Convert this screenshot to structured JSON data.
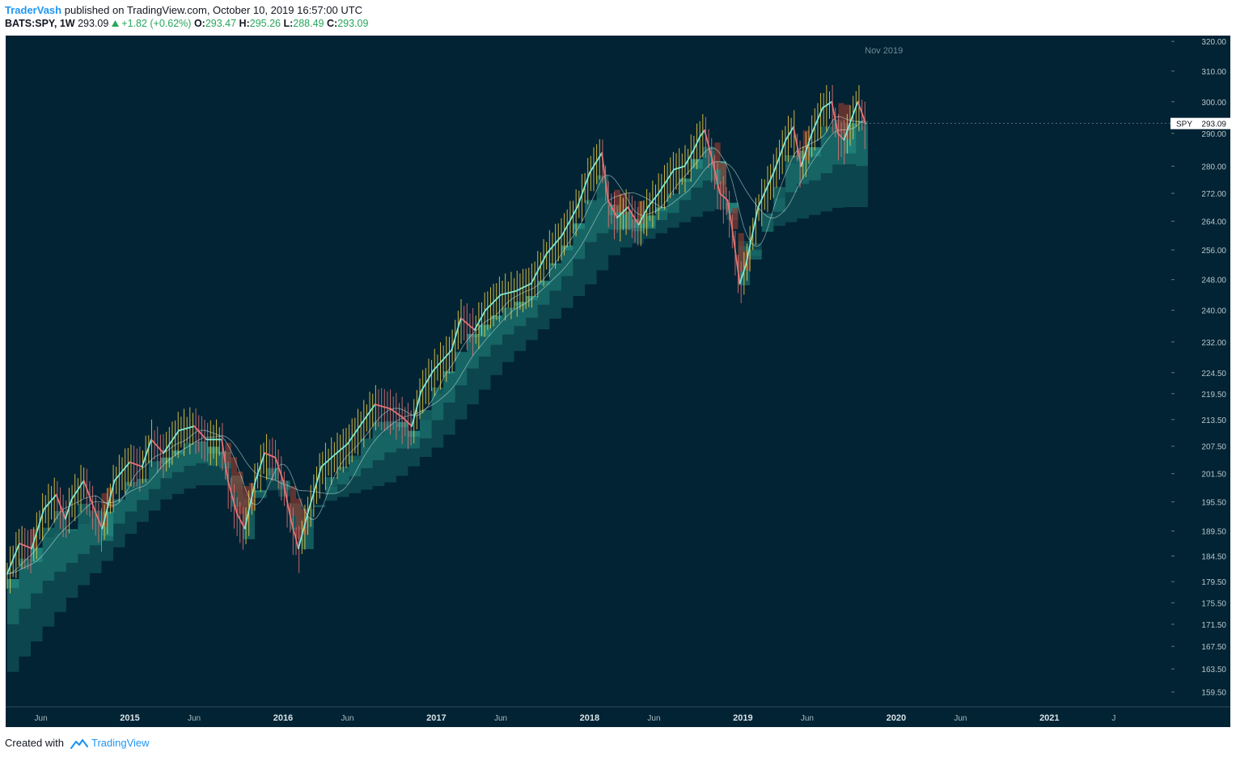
{
  "header": {
    "author": "TraderVash",
    "published_text": "published on TradingView.com, October 10, 2019 16:57:00 UTC",
    "symbol": "BATS:SPY, 1W",
    "last": "293.09",
    "change": "+1.82 (+0.62%)",
    "o_label": "O:",
    "o_value": "293.47",
    "h_label": "H:",
    "h_value": "295.26",
    "l_label": "L:",
    "l_value": "288.49",
    "c_label": "C:",
    "c_value": "293.09"
  },
  "footer": {
    "created_with": "Created with",
    "brand": "TradingView"
  },
  "colors": {
    "background": "#012334",
    "cloud": "#2a9d8f",
    "cloud_bear": "#8a3b2f",
    "price_line": "#7fe8d4",
    "bear_line": "#e57373",
    "wick_up": "#f4d03f",
    "wick_down": "#e57373"
  },
  "chart_data": {
    "type": "line",
    "symbol": "SPY",
    "interval": "1W",
    "crosshair_label": "Nov 2019",
    "last_price_label": "SPY",
    "last_price": 293.09,
    "y_ticks": [
      320,
      310,
      300,
      290,
      280,
      272,
      264,
      256,
      248,
      240,
      232,
      224.5,
      219.5,
      213.5,
      207.5,
      201.5,
      195.5,
      189.5,
      184.5,
      179.5,
      175.5,
      171.5,
      167.5,
      163.5,
      159.5
    ],
    "y_tick_labels": [
      "320.00",
      "310.00",
      "300.00",
      "290.00",
      "280.00",
      "272.00",
      "264.00",
      "256.00",
      "248.00",
      "240.00",
      "232.00",
      "224.50",
      "219.50",
      "213.50",
      "207.50",
      "201.50",
      "195.50",
      "189.50",
      "184.50",
      "179.50",
      "175.50",
      "171.50",
      "167.50",
      "163.50",
      "159.50"
    ],
    "y_scale": "log",
    "ylim": [
      157,
      322
    ],
    "xlim": [
      2014.19,
      2021.79
    ],
    "x_ticks": [
      {
        "x": 2014.42,
        "label": "Jun",
        "major": false
      },
      {
        "x": 2015.0,
        "label": "2015",
        "major": true
      },
      {
        "x": 2015.42,
        "label": "Jun",
        "major": false
      },
      {
        "x": 2016.0,
        "label": "2016",
        "major": true
      },
      {
        "x": 2016.42,
        "label": "Jun",
        "major": false
      },
      {
        "x": 2017.0,
        "label": "2017",
        "major": true
      },
      {
        "x": 2017.42,
        "label": "Jun",
        "major": false
      },
      {
        "x": 2018.0,
        "label": "2018",
        "major": true
      },
      {
        "x": 2018.42,
        "label": "Jun",
        "major": false
      },
      {
        "x": 2019.0,
        "label": "2019",
        "major": true
      },
      {
        "x": 2019.42,
        "label": "Jun",
        "major": false
      },
      {
        "x": 2020.0,
        "label": "2020",
        "major": true
      },
      {
        "x": 2020.42,
        "label": "Jun",
        "major": false
      },
      {
        "x": 2021.0,
        "label": "2021",
        "major": true
      },
      {
        "x": 2021.42,
        "label": "J",
        "major": false
      }
    ],
    "crosshair_x": 2019.92,
    "series": [
      {
        "role": "close",
        "points": [
          [
            2014.2,
            181
          ],
          [
            2014.28,
            187
          ],
          [
            2014.36,
            186
          ],
          [
            2014.44,
            194
          ],
          [
            2014.52,
            197
          ],
          [
            2014.58,
            192
          ],
          [
            2014.62,
            196
          ],
          [
            2014.7,
            200
          ],
          [
            2014.78,
            193
          ],
          [
            2014.82,
            190
          ],
          [
            2014.9,
            200
          ],
          [
            2015.0,
            204
          ],
          [
            2015.08,
            203
          ],
          [
            2015.14,
            209
          ],
          [
            2015.22,
            206
          ],
          [
            2015.32,
            211
          ],
          [
            2015.42,
            212
          ],
          [
            2015.5,
            209
          ],
          [
            2015.6,
            209
          ],
          [
            2015.64,
            200
          ],
          [
            2015.7,
            193
          ],
          [
            2015.75,
            190
          ],
          [
            2015.82,
            200
          ],
          [
            2015.88,
            206
          ],
          [
            2015.95,
            205
          ],
          [
            2016.0,
            200
          ],
          [
            2016.05,
            192
          ],
          [
            2016.1,
            186
          ],
          [
            2016.16,
            193
          ],
          [
            2016.25,
            203
          ],
          [
            2016.35,
            206
          ],
          [
            2016.42,
            208
          ],
          [
            2016.52,
            213
          ],
          [
            2016.6,
            217
          ],
          [
            2016.7,
            216
          ],
          [
            2016.78,
            214
          ],
          [
            2016.84,
            212
          ],
          [
            2016.9,
            220
          ],
          [
            2016.98,
            225
          ],
          [
            2017.1,
            230
          ],
          [
            2017.16,
            238
          ],
          [
            2017.25,
            235
          ],
          [
            2017.32,
            240
          ],
          [
            2017.42,
            244
          ],
          [
            2017.52,
            245
          ],
          [
            2017.62,
            247
          ],
          [
            2017.72,
            255
          ],
          [
            2017.82,
            260
          ],
          [
            2017.92,
            268
          ],
          [
            2018.0,
            278
          ],
          [
            2018.08,
            284
          ],
          [
            2018.12,
            270
          ],
          [
            2018.18,
            265
          ],
          [
            2018.25,
            268
          ],
          [
            2018.32,
            263
          ],
          [
            2018.38,
            268
          ],
          [
            2018.45,
            272
          ],
          [
            2018.55,
            279
          ],
          [
            2018.62,
            280
          ],
          [
            2018.68,
            285
          ],
          [
            2018.72,
            289
          ],
          [
            2018.75,
            291
          ],
          [
            2018.8,
            282
          ],
          [
            2018.85,
            272
          ],
          [
            2018.9,
            270
          ],
          [
            2018.93,
            262
          ],
          [
            2018.98,
            247
          ],
          [
            2019.02,
            252
          ],
          [
            2019.1,
            268
          ],
          [
            2019.2,
            278
          ],
          [
            2019.28,
            288
          ],
          [
            2019.33,
            292
          ],
          [
            2019.38,
            280
          ],
          [
            2019.45,
            290
          ],
          [
            2019.52,
            298
          ],
          [
            2019.58,
            300
          ],
          [
            2019.62,
            290
          ],
          [
            2019.66,
            288
          ],
          [
            2019.72,
            296
          ],
          [
            2019.75,
            300
          ],
          [
            2019.78,
            296
          ],
          [
            2019.8,
            293
          ]
        ]
      },
      {
        "role": "cloud_upper",
        "points": [
          [
            2014.2,
            180
          ],
          [
            2014.4,
            188
          ],
          [
            2014.6,
            190
          ],
          [
            2014.8,
            193
          ],
          [
            2015.0,
            199
          ],
          [
            2015.2,
            205
          ],
          [
            2015.4,
            209
          ],
          [
            2015.6,
            206
          ],
          [
            2015.75,
            194
          ],
          [
            2015.9,
            203
          ],
          [
            2016.0,
            198
          ],
          [
            2016.12,
            190
          ],
          [
            2016.3,
            200
          ],
          [
            2016.5,
            207
          ],
          [
            2016.7,
            214
          ],
          [
            2016.85,
            210
          ],
          [
            2017.0,
            222
          ],
          [
            2017.2,
            234
          ],
          [
            2017.4,
            240
          ],
          [
            2017.6,
            244
          ],
          [
            2017.8,
            256
          ],
          [
            2018.0,
            272
          ],
          [
            2018.15,
            268
          ],
          [
            2018.3,
            264
          ],
          [
            2018.5,
            270
          ],
          [
            2018.7,
            285
          ],
          [
            2018.8,
            284
          ],
          [
            2018.9,
            268
          ],
          [
            2019.0,
            250
          ],
          [
            2019.15,
            264
          ],
          [
            2019.3,
            284
          ],
          [
            2019.45,
            286
          ],
          [
            2019.6,
            294
          ],
          [
            2019.75,
            292
          ],
          [
            2019.8,
            291
          ]
        ]
      },
      {
        "role": "cloud_lower",
        "points": [
          [
            2014.2,
            163
          ],
          [
            2014.4,
            170
          ],
          [
            2014.6,
            177
          ],
          [
            2014.8,
            183
          ],
          [
            2015.0,
            190
          ],
          [
            2015.2,
            196
          ],
          [
            2015.4,
            199
          ],
          [
            2015.6,
            199
          ],
          [
            2015.75,
            197
          ],
          [
            2015.9,
            198
          ],
          [
            2016.0,
            196
          ],
          [
            2016.12,
            194
          ],
          [
            2016.3,
            196
          ],
          [
            2016.5,
            198
          ],
          [
            2016.7,
            200
          ],
          [
            2016.85,
            204
          ],
          [
            2017.0,
            208
          ],
          [
            2017.2,
            217
          ],
          [
            2017.4,
            226
          ],
          [
            2017.6,
            233
          ],
          [
            2017.8,
            240
          ],
          [
            2018.0,
            248
          ],
          [
            2018.15,
            256
          ],
          [
            2018.3,
            258
          ],
          [
            2018.5,
            262
          ],
          [
            2018.7,
            266
          ],
          [
            2018.8,
            268
          ],
          [
            2018.9,
            264
          ],
          [
            2019.0,
            256
          ],
          [
            2019.15,
            262
          ],
          [
            2019.3,
            264
          ],
          [
            2019.45,
            266
          ],
          [
            2019.6,
            268
          ],
          [
            2019.75,
            268
          ],
          [
            2019.8,
            268
          ]
        ]
      }
    ]
  }
}
